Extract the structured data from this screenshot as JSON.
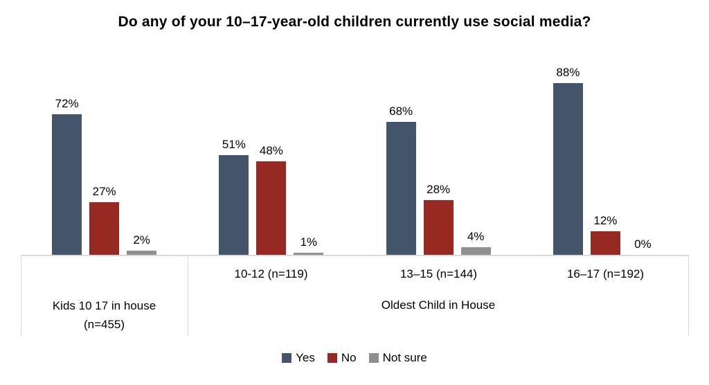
{
  "title": "Do any of your 10–17-year-old children currently use social media?",
  "chart_data": {
    "type": "bar",
    "title": "Do any of your 10–17-year-old children currently use social media?",
    "categories": [
      "Kids 10 17 in house (n=455)",
      "10-12 (n=119)",
      "13–15 (n=144)",
      "16–17 (n=192)"
    ],
    "series": [
      {
        "name": "Yes",
        "color": "#44546a",
        "values": [
          72,
          51,
          68,
          88
        ]
      },
      {
        "name": "No",
        "color": "#962921",
        "values": [
          27,
          48,
          28,
          12
        ]
      },
      {
        "name": "Not sure",
        "color": "#8f8f8f",
        "values": [
          2,
          1,
          4,
          0
        ]
      }
    ],
    "value_suffix": "%",
    "ylim": [
      0,
      100
    ],
    "grid": false,
    "legend_position": "bottom",
    "axis_line_color": "#d9d9d9"
  },
  "axis": {
    "categories_tier1": [
      "10-12 (n=119)",
      "13–15 (n=144)",
      "16–17 (n=192)"
    ],
    "left_category_line1": "Kids 10 17 in house",
    "left_category_line2": "(n=455)",
    "group_label": "Oldest Child in House"
  },
  "legend": {
    "items": [
      "Yes",
      "No",
      "Not sure"
    ]
  }
}
